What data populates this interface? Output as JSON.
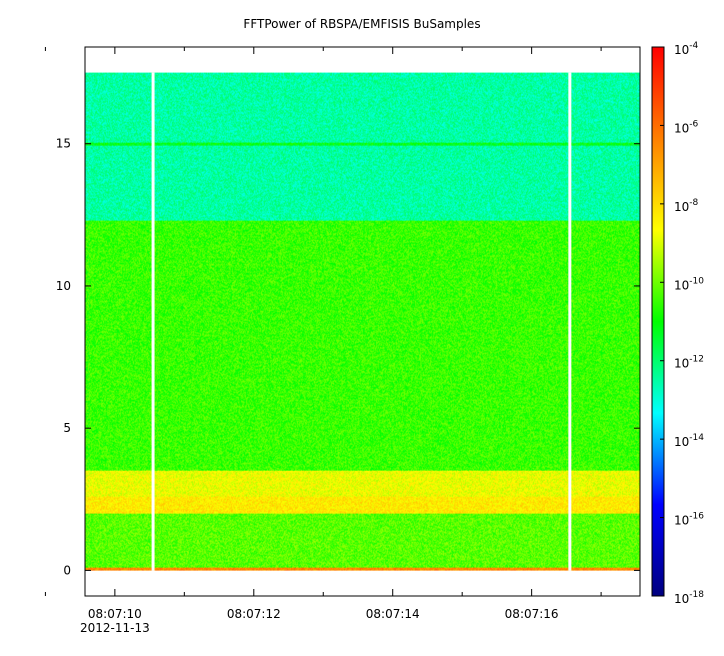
{
  "chart_data": {
    "type": "heatmap",
    "title": "FFTPower of RBSPA/EMFISIS  BuSamples",
    "xlabel": "",
    "ylabel": "",
    "x_axis": {
      "tick_labels": [
        "08:07:10",
        "08:07:12",
        "08:07:14",
        "08:07:16"
      ],
      "tick_values_seconds": [
        10,
        12,
        14,
        16
      ],
      "minor_tick_values_seconds": [
        9,
        11,
        13,
        15,
        17
      ],
      "date_label": "2012-11-13",
      "range_seconds": [
        9.57,
        17.56
      ]
    },
    "y_axis": {
      "tick_labels": [
        "0",
        "5",
        "10",
        "15"
      ],
      "tick_values": [
        0,
        5,
        10,
        15
      ],
      "range": [
        -0.9,
        18.4
      ]
    },
    "colorbar": {
      "scale": "log",
      "range": [
        1e-18,
        0.0001
      ],
      "tick_labels": [
        {
          "base": "10",
          "exp": "-4"
        },
        {
          "base": "10",
          "exp": "-6"
        },
        {
          "base": "10",
          "exp": "-8"
        },
        {
          "base": "10",
          "exp": "-10"
        },
        {
          "base": "10",
          "exp": "-12"
        },
        {
          "base": "10",
          "exp": "-14"
        },
        {
          "base": "10",
          "exp": "-16"
        },
        {
          "base": "10",
          "exp": "-18"
        }
      ],
      "tick_exponents": [
        -4,
        -6,
        -8,
        -10,
        -12,
        -14,
        -16,
        -18
      ],
      "colors": [
        "#00007f",
        "#0000ff",
        "#00ffff",
        "#00ff00",
        "#ffff00",
        "#ff7f00",
        "#ff0000"
      ]
    },
    "data_extent": {
      "y_max": 17.5
    },
    "gaps_seconds": [
      10.55,
      16.55
    ],
    "regions": [
      {
        "y_from": 12.3,
        "y_to": 17.5,
        "level_exp": -12.5
      },
      {
        "y_from": 3.5,
        "y_to": 12.3,
        "level_exp": -10.5
      },
      {
        "y_from": 2.6,
        "y_to": 3.5,
        "level_exp": -8.8
      },
      {
        "y_from": 2.0,
        "y_to": 2.6,
        "level_exp": -8.3
      },
      {
        "y_from": 0.1,
        "y_to": 2.0,
        "level_exp": -10.2
      },
      {
        "y_from": 0.0,
        "y_to": 0.1,
        "level_exp": -6.5
      }
    ],
    "lines": [
      {
        "y": 15.0,
        "level_exp": -11.2
      }
    ],
    "grid": false
  }
}
